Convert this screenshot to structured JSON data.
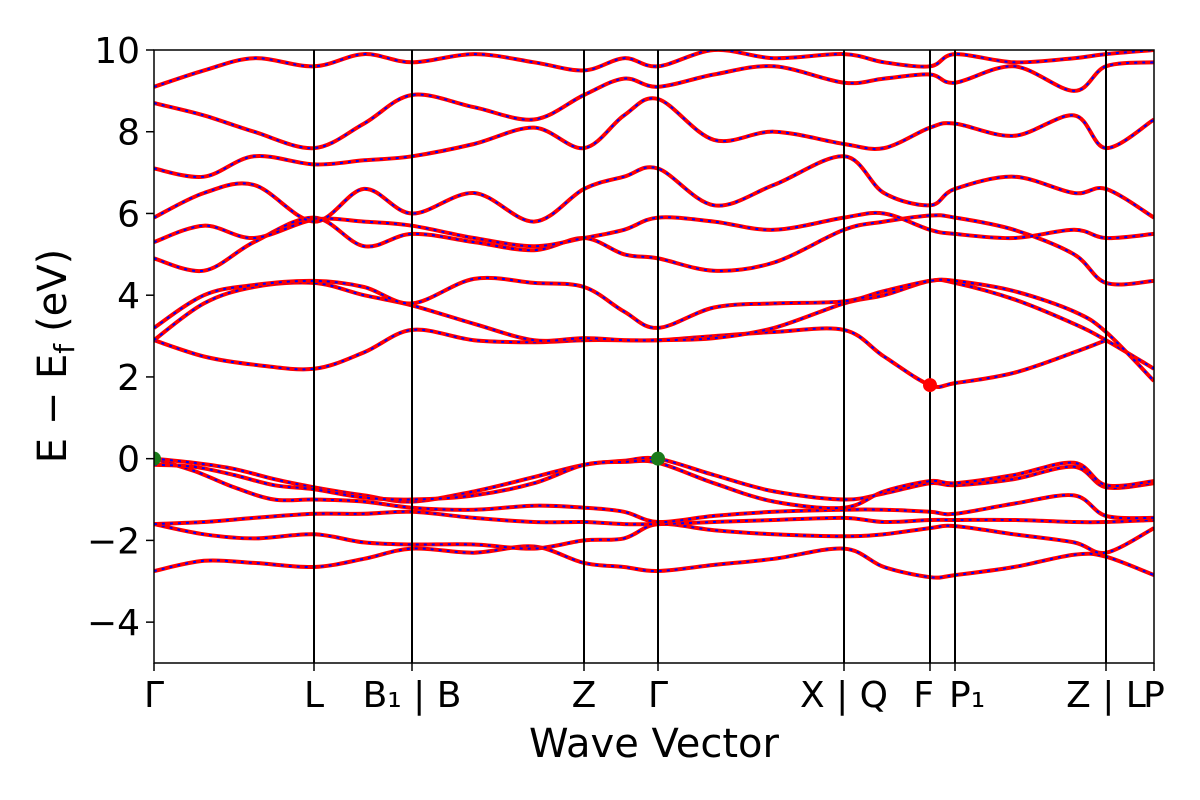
{
  "chart_data": {
    "type": "line",
    "xlabel": "Wave Vector",
    "ylabel": "E − E",
    "ylabel_sub": "f",
    "ylabel_unit": "(eV)",
    "ylim": [
      -5,
      10
    ],
    "xlim": [
      0,
      1
    ],
    "yticks": [
      -4,
      -2,
      0,
      2,
      4,
      6,
      8,
      10
    ],
    "ytick_labels": [
      "−4",
      "−2",
      "0",
      "2",
      "4",
      "6",
      "8",
      "10"
    ],
    "kpath": [
      {
        "label": "Γ",
        "x": 0.0
      },
      {
        "label": "L",
        "x": 0.16
      },
      {
        "label": "B₁ | B",
        "x": 0.258
      },
      {
        "label": "Z",
        "x": 0.43
      },
      {
        "label": "Γ",
        "x": 0.504
      },
      {
        "label": "X | Q",
        "x": 0.69
      },
      {
        "label": "F",
        "x": 0.776
      },
      {
        "label": "P₁",
        "x": 0.801
      },
      {
        "label": "Z | L",
        "x": 0.952
      },
      {
        "label": "P",
        "x": 1.0
      }
    ],
    "vlines": [
      0.16,
      0.258,
      0.43,
      0.504,
      0.69,
      0.776,
      0.801,
      0.952
    ],
    "line_colors": {
      "primary": "#ff0000",
      "overlay": "#0000ff"
    },
    "markers": [
      {
        "name": "VBM",
        "x": 0.0,
        "y": 0.0,
        "color": "#1a7a1a"
      },
      {
        "name": "VBM",
        "x": 0.504,
        "y": 0.0,
        "color": "#1a7a1a"
      },
      {
        "name": "CBM",
        "x": 0.776,
        "y": 1.8,
        "color": "#ff0000"
      }
    ],
    "series": [
      {
        "x": [
          0,
          0.05,
          0.1,
          0.16,
          0.21,
          0.258,
          0.32,
          0.38,
          0.43,
          0.47,
          0.504,
          0.56,
          0.62,
          0.69,
          0.73,
          0.776,
          0.801,
          0.86,
          0.92,
          0.952,
          1.0
        ],
        "y": [
          -2.75,
          -2.5,
          -2.55,
          -2.65,
          -2.45,
          -2.2,
          -2.3,
          -2.15,
          -2.55,
          -2.65,
          -2.75,
          -2.6,
          -2.45,
          -2.2,
          -2.65,
          -2.9,
          -2.85,
          -2.65,
          -2.35,
          -2.4,
          -2.85
        ]
      },
      {
        "x": [
          0,
          0.05,
          0.1,
          0.16,
          0.21,
          0.258,
          0.32,
          0.38,
          0.43,
          0.47,
          0.504,
          0.56,
          0.62,
          0.69,
          0.73,
          0.776,
          0.801,
          0.86,
          0.92,
          0.952,
          1.0
        ],
        "y": [
          -1.6,
          -1.85,
          -1.95,
          -1.85,
          -2.05,
          -2.1,
          -2.1,
          -2.2,
          -2.0,
          -1.95,
          -1.6,
          -1.75,
          -1.85,
          -1.9,
          -1.85,
          -1.7,
          -1.65,
          -1.85,
          -2.05,
          -2.3,
          -1.7
        ]
      },
      {
        "x": [
          0,
          0.05,
          0.1,
          0.16,
          0.21,
          0.258,
          0.32,
          0.38,
          0.43,
          0.47,
          0.504,
          0.56,
          0.62,
          0.69,
          0.73,
          0.776,
          0.801,
          0.86,
          0.92,
          0.952,
          1.0
        ],
        "y": [
          -1.6,
          -1.55,
          -1.45,
          -1.35,
          -1.35,
          -1.3,
          -1.45,
          -1.55,
          -1.55,
          -1.6,
          -1.6,
          -1.55,
          -1.5,
          -1.45,
          -1.55,
          -1.5,
          -1.5,
          -1.5,
          -1.55,
          -1.55,
          -1.5
        ]
      },
      {
        "x": [
          0,
          0.04,
          0.08,
          0.12,
          0.16,
          0.21,
          0.258,
          0.32,
          0.38,
          0.43,
          0.47,
          0.504,
          0.56,
          0.62,
          0.69,
          0.73,
          0.776,
          0.801,
          0.86,
          0.92,
          0.952,
          1.0
        ],
        "y": [
          0.0,
          -0.3,
          -0.7,
          -1.0,
          -1.0,
          -1.05,
          -1.2,
          -1.25,
          -1.15,
          -1.2,
          -1.3,
          -1.55,
          -1.4,
          -1.3,
          -1.25,
          -1.25,
          -1.3,
          -1.35,
          -1.1,
          -0.9,
          -1.4,
          -1.45
        ]
      },
      {
        "x": [
          0,
          0.04,
          0.08,
          0.12,
          0.16,
          0.21,
          0.258,
          0.32,
          0.38,
          0.43,
          0.47,
          0.504,
          0.56,
          0.62,
          0.69,
          0.73,
          0.776,
          0.801,
          0.86,
          0.92,
          0.952,
          1.0
        ],
        "y": [
          0.0,
          -0.1,
          -0.25,
          -0.5,
          -0.7,
          -0.9,
          -1.05,
          -0.8,
          -0.45,
          -0.15,
          -0.05,
          0.0,
          -0.4,
          -0.8,
          -1.0,
          -0.85,
          -0.6,
          -0.65,
          -0.5,
          -0.2,
          -0.7,
          -0.6
        ]
      },
      {
        "x": [
          0,
          0.04,
          0.08,
          0.12,
          0.16,
          0.21,
          0.258,
          0.32,
          0.38,
          0.43,
          0.47,
          0.504,
          0.56,
          0.62,
          0.69,
          0.73,
          0.776,
          0.801,
          0.86,
          0.92,
          0.952,
          1.0
        ],
        "y": [
          -0.15,
          -0.2,
          -0.4,
          -0.65,
          -0.75,
          -0.95,
          -1.0,
          -0.9,
          -0.6,
          -0.15,
          -0.08,
          -0.1,
          -0.6,
          -1.05,
          -1.2,
          -0.8,
          -0.55,
          -0.6,
          -0.4,
          -0.1,
          -0.65,
          -0.55
        ]
      },
      {
        "x": [
          0,
          0.05,
          0.1,
          0.16,
          0.21,
          0.258,
          0.32,
          0.38,
          0.43,
          0.47,
          0.504,
          0.56,
          0.62,
          0.69,
          0.73,
          0.776,
          0.801,
          0.86,
          0.92,
          0.952
        ],
        "y": [
          2.9,
          2.5,
          2.3,
          2.2,
          2.6,
          3.15,
          2.9,
          2.85,
          2.9,
          2.9,
          2.9,
          3.0,
          3.1,
          3.15,
          2.5,
          1.8,
          1.85,
          2.1,
          2.6,
          2.9
        ]
      },
      {
        "x": [
          0,
          0.05,
          0.1,
          0.16,
          0.21,
          0.258,
          0.32,
          0.38,
          0.43,
          0.47,
          0.504,
          0.56,
          0.62,
          0.69,
          0.73,
          0.776,
          0.801,
          0.86,
          0.92,
          0.952,
          1.0
        ],
        "y": [
          2.9,
          3.8,
          4.2,
          4.3,
          4.0,
          3.75,
          3.3,
          2.9,
          2.95,
          2.9,
          2.9,
          2.95,
          3.2,
          3.8,
          4.0,
          4.35,
          4.3,
          3.9,
          3.3,
          2.9,
          2.2
        ]
      },
      {
        "x": [
          0,
          0.05,
          0.1,
          0.16,
          0.21,
          0.258,
          0.32,
          0.38,
          0.43,
          0.47,
          0.504,
          0.56,
          0.62,
          0.69,
          0.73,
          0.776,
          0.801,
          0.86,
          0.92,
          0.952,
          1.0
        ],
        "y": [
          3.2,
          4.0,
          4.25,
          4.35,
          4.2,
          3.8,
          4.4,
          4.3,
          4.2,
          3.6,
          3.2,
          3.7,
          3.8,
          3.85,
          4.1,
          4.35,
          4.35,
          4.1,
          3.6,
          3.1,
          1.9
        ]
      },
      {
        "x": [
          0,
          0.05,
          0.1,
          0.16,
          0.21,
          0.258,
          0.32,
          0.38,
          0.43,
          0.47,
          0.504,
          0.56,
          0.62,
          0.69,
          0.73,
          0.776,
          0.801,
          0.86,
          0.92,
          0.952,
          1.0
        ],
        "y": [
          4.9,
          4.6,
          5.3,
          5.9,
          5.2,
          5.5,
          5.3,
          5.1,
          5.4,
          5.0,
          4.9,
          4.6,
          4.8,
          5.6,
          5.8,
          5.95,
          5.9,
          5.6,
          5.0,
          4.3,
          4.35
        ]
      },
      {
        "x": [
          0,
          0.05,
          0.1,
          0.16,
          0.21,
          0.258,
          0.32,
          0.38,
          0.43,
          0.47,
          0.504,
          0.56,
          0.62,
          0.69,
          0.73,
          0.776,
          0.801,
          0.86,
          0.92,
          0.952,
          1.0
        ],
        "y": [
          5.3,
          5.7,
          5.4,
          5.85,
          5.8,
          5.7,
          5.4,
          5.2,
          5.4,
          5.6,
          5.9,
          5.8,
          5.6,
          5.9,
          6.0,
          5.6,
          5.5,
          5.4,
          5.6,
          5.4,
          5.5
        ]
      },
      {
        "x": [
          0,
          0.05,
          0.1,
          0.16,
          0.21,
          0.258,
          0.32,
          0.38,
          0.43,
          0.47,
          0.504,
          0.56,
          0.62,
          0.69,
          0.73,
          0.776,
          0.801,
          0.86,
          0.92,
          0.952,
          1.0
        ],
        "y": [
          5.9,
          6.5,
          6.7,
          5.8,
          6.6,
          6.0,
          6.5,
          5.8,
          6.6,
          6.9,
          7.1,
          6.2,
          6.7,
          7.4,
          6.5,
          6.2,
          6.6,
          6.9,
          6.5,
          6.6,
          5.9
        ]
      },
      {
        "x": [
          0,
          0.05,
          0.1,
          0.16,
          0.21,
          0.258,
          0.32,
          0.38,
          0.43,
          0.47,
          0.504,
          0.56,
          0.62,
          0.69,
          0.73,
          0.776,
          0.801,
          0.86,
          0.92,
          0.952,
          1.0
        ],
        "y": [
          7.1,
          6.9,
          7.4,
          7.2,
          7.3,
          7.4,
          7.7,
          8.1,
          7.6,
          8.4,
          8.8,
          7.8,
          8.0,
          7.7,
          7.6,
          8.1,
          8.2,
          7.9,
          8.4,
          7.6,
          8.3
        ]
      },
      {
        "x": [
          0,
          0.05,
          0.1,
          0.16,
          0.21,
          0.258,
          0.32,
          0.38,
          0.43,
          0.47,
          0.504,
          0.56,
          0.62,
          0.69,
          0.73,
          0.776,
          0.801,
          0.86,
          0.92,
          0.952,
          1.0
        ],
        "y": [
          8.7,
          8.4,
          8.0,
          7.6,
          8.2,
          8.9,
          8.6,
          8.3,
          8.9,
          9.3,
          9.1,
          9.4,
          9.6,
          9.2,
          9.3,
          9.4,
          9.2,
          9.6,
          9.0,
          9.6,
          9.7
        ]
      },
      {
        "x": [
          0,
          0.05,
          0.1,
          0.16,
          0.21,
          0.258,
          0.32,
          0.38,
          0.43,
          0.47,
          0.504,
          0.56,
          0.62,
          0.69,
          0.73,
          0.776,
          0.801,
          0.86,
          0.92,
          0.952,
          1.0
        ],
        "y": [
          9.1,
          9.5,
          9.8,
          9.6,
          9.9,
          9.7,
          9.9,
          9.7,
          9.5,
          9.8,
          9.6,
          10.0,
          9.8,
          9.9,
          9.7,
          9.6,
          9.9,
          9.7,
          9.8,
          9.9,
          10.0
        ]
      }
    ]
  }
}
